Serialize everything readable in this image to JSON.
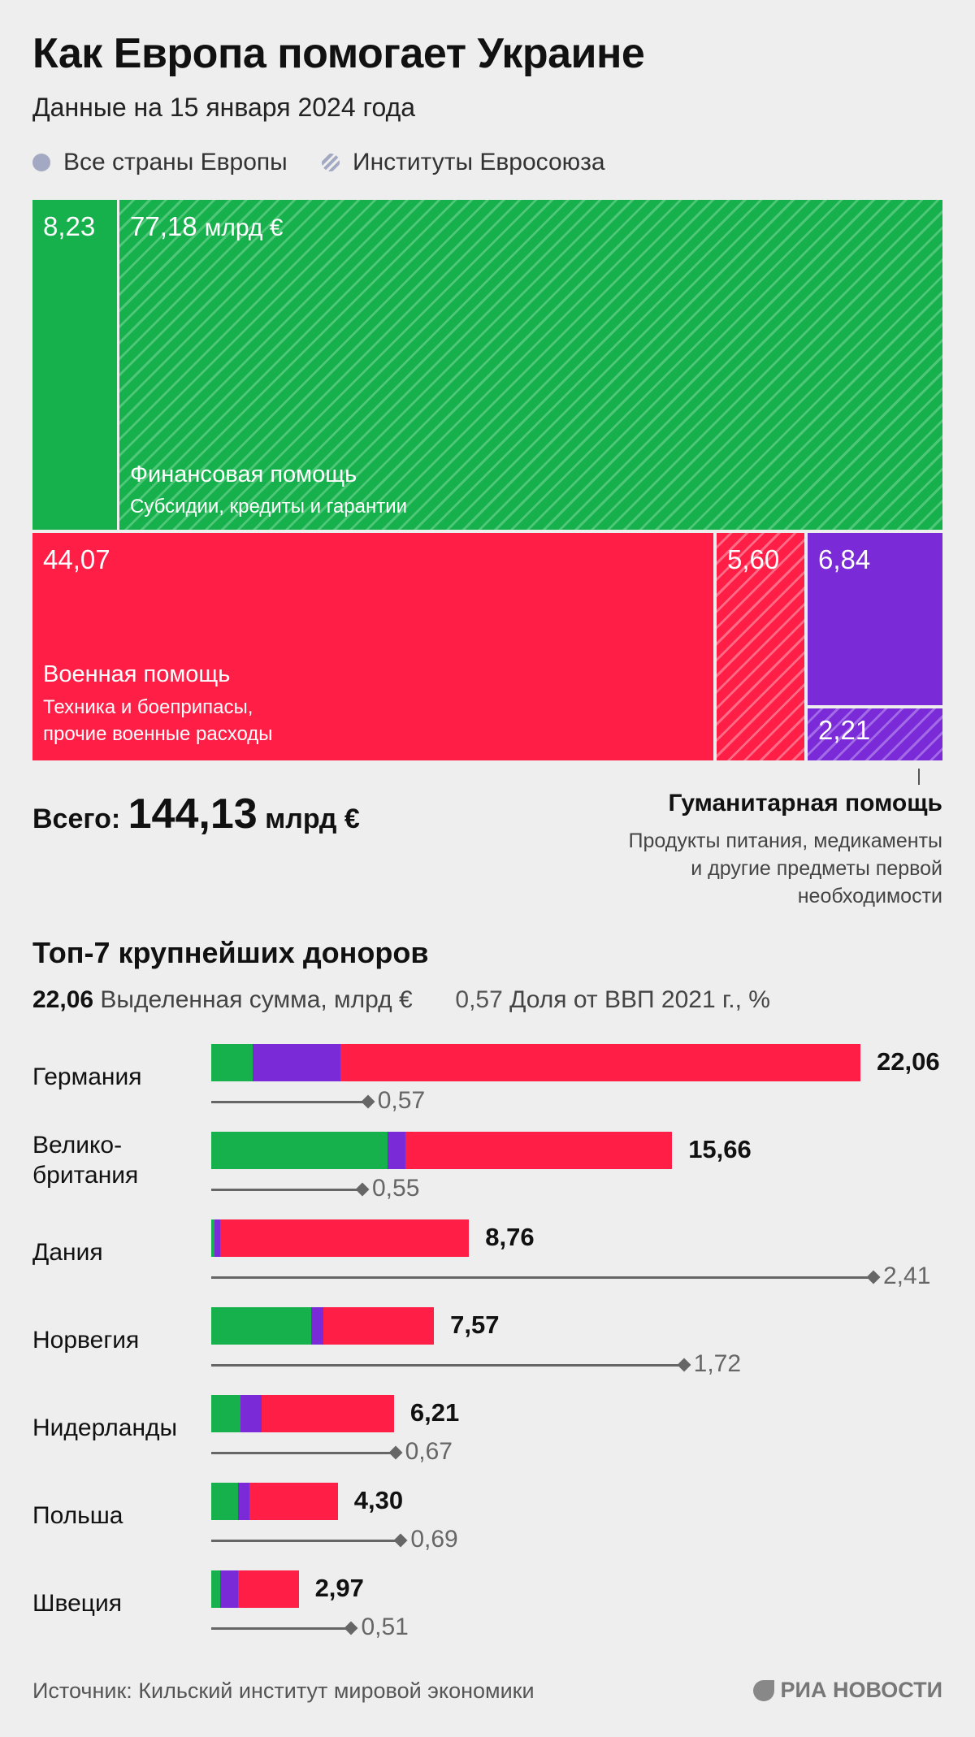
{
  "title": "Как Европа помогает Украине",
  "subtitle": "Данные на 15 января 2024 года",
  "legend": {
    "solid": "Все страны Европы",
    "hatched": "Институты Евросоюза"
  },
  "colors": {
    "financial": "#16b04c",
    "military": "#ff1e46",
    "humanitarian": "#7a2ad6",
    "legend_marker": "#a3a9c2"
  },
  "treemap": {
    "financial": {
      "countries": "8,23",
      "eu": "77,18",
      "eu_unit": "млрд €",
      "label": "Финансовая помощь",
      "sublabel": "Субсидии, кредиты и гарантии"
    },
    "military": {
      "countries": "44,07",
      "eu": "5,60",
      "label": "Военная помощь",
      "sublabel_1": "Техника и боеприпасы,",
      "sublabel_2": "прочие военные расходы"
    },
    "humanitarian": {
      "countries": "6,84",
      "eu": "2,21",
      "label": "Гуманитарная помощь",
      "sublabel_1": "Продукты питания, медикаменты",
      "sublabel_2": "и другие предметы первой",
      "sublabel_3": "необходимости"
    }
  },
  "total": {
    "label": "Всего:",
    "value": "144,13",
    "unit": "млрд €"
  },
  "top": {
    "title": "Топ-7 крупнейших доноров",
    "legend_value": "22,06",
    "legend_value_label": "Выделенная сумма, млрд €",
    "legend_gdp": "0,57",
    "legend_gdp_label": "Доля от ВВП 2021 г., %"
  },
  "chart_data": [
    {
      "type": "bar",
      "orientation": "horizontal",
      "stacked": true,
      "title": "Топ-7 крупнейших доноров",
      "categories": [
        "Германия",
        "Велико-\nбритания",
        "Дания",
        "Норвегия",
        "Нидерланды",
        "Польша",
        "Швеция"
      ],
      "totals": [
        22.06,
        15.66,
        8.76,
        7.57,
        6.21,
        4.3,
        2.97
      ],
      "total_labels": [
        "22,06",
        "15,66",
        "8,76",
        "7,57",
        "6,21",
        "4,30",
        "2,97"
      ],
      "series": [
        {
          "name": "",
          "color": "#16b04c",
          "values": [
            1.4,
            6.0,
            0.1,
            3.4,
            1.0,
            0.9,
            0.3
          ]
        },
        {
          "name": "",
          "color": "#7a2ad6",
          "values": [
            3.0,
            0.6,
            0.2,
            0.4,
            0.7,
            0.4,
            0.6
          ]
        },
        {
          "name": "",
          "color": "#ff1e46",
          "values": [
            17.66,
            9.06,
            8.46,
            3.77,
            4.51,
            3.0,
            2.07
          ]
        }
      ],
      "xlim": [
        0,
        22.06
      ]
    },
    {
      "type": "scatter",
      "ylabel": "Доля от ВВП 2021 г., %",
      "categories": [
        "Германия",
        "Велико-\nбритания",
        "Дания",
        "Норвегия",
        "Нидерланды",
        "Польша",
        "Швеция"
      ],
      "values": [
        0.57,
        0.55,
        2.41,
        1.72,
        0.67,
        0.69,
        0.51
      ],
      "labels": [
        "0,57",
        "0,55",
        "2,41",
        "1,72",
        "0,67",
        "0,69",
        "0,51"
      ],
      "xlim": [
        0,
        2.41
      ]
    }
  ],
  "source": "Источник: Кильский институт мировой экономики",
  "logo": "РИА НОВОСТИ"
}
